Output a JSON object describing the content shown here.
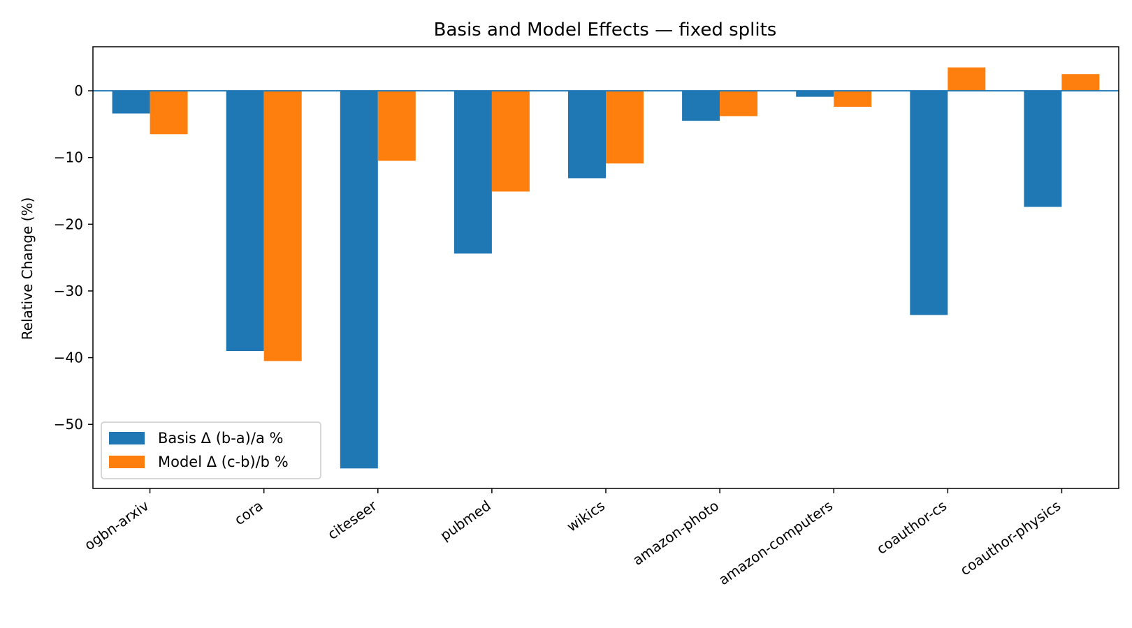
{
  "chart_data": {
    "type": "bar",
    "title": "Basis and Model Effects — fixed splits",
    "xlabel": "",
    "ylabel": "Relative Change (%)",
    "categories": [
      "ogbn-arxiv",
      "cora",
      "citeseer",
      "pubmed",
      "wikics",
      "amazon-photo",
      "amazon-computers",
      "coauthor-cs",
      "coauthor-physics"
    ],
    "series": [
      {
        "name": "Basis Δ (b-a)/a %",
        "color": "#1f77b4",
        "values": [
          -3.4,
          -39.0,
          -56.6,
          -24.4,
          -13.1,
          -4.5,
          -0.9,
          -33.6,
          -17.4
        ]
      },
      {
        "name": "Model Δ (c-b)/b %",
        "color": "#ff7f0e",
        "values": [
          -6.5,
          -40.5,
          -10.5,
          -15.1,
          -10.9,
          -3.8,
          -2.4,
          3.5,
          2.5
        ]
      }
    ],
    "ylim": [
      -59.6,
      6.6
    ],
    "yticks": [
      0,
      -10,
      -20,
      -30,
      -40,
      -50
    ],
    "ytick_labels": [
      "0",
      "−10",
      "−20",
      "−30",
      "−40",
      "−50"
    ],
    "zero_line": true,
    "zero_line_color": "#1f77b4",
    "grid": false,
    "legend_position": "lower-left"
  }
}
